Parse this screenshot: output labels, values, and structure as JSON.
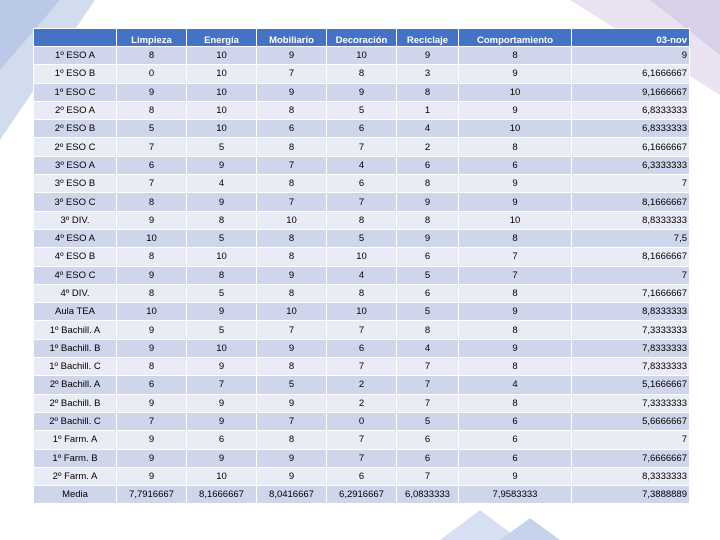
{
  "table": {
    "headers": [
      "",
      "Limpieza",
      "Energía",
      "Mobiliario",
      "Decoración",
      "Reciclaje",
      "Comportamiento",
      "03-nov"
    ],
    "rows": [
      [
        "1º ESO A",
        "8",
        "10",
        "9",
        "10",
        "9",
        "8",
        "9"
      ],
      [
        "1º ESO B",
        "0",
        "10",
        "7",
        "8",
        "3",
        "9",
        "6,1666667"
      ],
      [
        "1º ESO C",
        "9",
        "10",
        "9",
        "9",
        "8",
        "10",
        "9,1666667"
      ],
      [
        "2º ESO A",
        "8",
        "10",
        "8",
        "5",
        "1",
        "9",
        "6,8333333"
      ],
      [
        "2º ESO B",
        "5",
        "10",
        "6",
        "6",
        "4",
        "10",
        "6,8333333"
      ],
      [
        "2º ESO C",
        "7",
        "5",
        "8",
        "7",
        "2",
        "8",
        "6,1666667"
      ],
      [
        "3º ESO A",
        "6",
        "9",
        "7",
        "4",
        "6",
        "6",
        "6,3333333"
      ],
      [
        "3º ESO B",
        "7",
        "4",
        "8",
        "6",
        "8",
        "9",
        "7"
      ],
      [
        "3º ESO C",
        "8",
        "9",
        "7",
        "7",
        "9",
        "9",
        "8,1666667"
      ],
      [
        "3º DIV.",
        "9",
        "8",
        "10",
        "8",
        "8",
        "10",
        "8,8333333"
      ],
      [
        "4º ESO A",
        "10",
        "5",
        "8",
        "5",
        "9",
        "8",
        "7,5"
      ],
      [
        "4º ESO B",
        "8",
        "10",
        "8",
        "10",
        "6",
        "7",
        "8,1666667"
      ],
      [
        "4º ESO C",
        "9",
        "8",
        "9",
        "4",
        "5",
        "7",
        "7"
      ],
      [
        "4º DIV.",
        "8",
        "5",
        "8",
        "8",
        "6",
        "8",
        "7,1666667"
      ],
      [
        "Aula TEA",
        "10",
        "9",
        "10",
        "10",
        "5",
        "9",
        "8,8333333"
      ],
      [
        "1º Bachill. A",
        "9",
        "5",
        "7",
        "7",
        "8",
        "8",
        "7,3333333"
      ],
      [
        "1º Bachill. B",
        "9",
        "10",
        "9",
        "6",
        "4",
        "9",
        "7,8333333"
      ],
      [
        "1º Bachill. C",
        "8",
        "9",
        "8",
        "7",
        "7",
        "8",
        "7,8333333"
      ],
      [
        "2º Bachill. A",
        "6",
        "7",
        "5",
        "2",
        "7",
        "4",
        "5,1666667"
      ],
      [
        "2º Bachill. B",
        "9",
        "9",
        "9",
        "2",
        "7",
        "8",
        "7,3333333"
      ],
      [
        "2º Bachill. C",
        "7",
        "9",
        "7",
        "0",
        "5",
        "6",
        "5,6666667"
      ],
      [
        "1º Farm. A",
        "9",
        "6",
        "8",
        "7",
        "6",
        "6",
        "7"
      ],
      [
        "1º Farm. B",
        "9",
        "9",
        "9",
        "7",
        "6",
        "6",
        "7,6666667"
      ],
      [
        "2º Farm. A",
        "9",
        "10",
        "9",
        "6",
        "7",
        "9",
        "8,3333333"
      ],
      [
        "Media",
        "7,7916667",
        "8,1666667",
        "8,0416667",
        "6,2916667",
        "6,0833333",
        "7,9583333",
        "7,3888889"
      ]
    ]
  }
}
